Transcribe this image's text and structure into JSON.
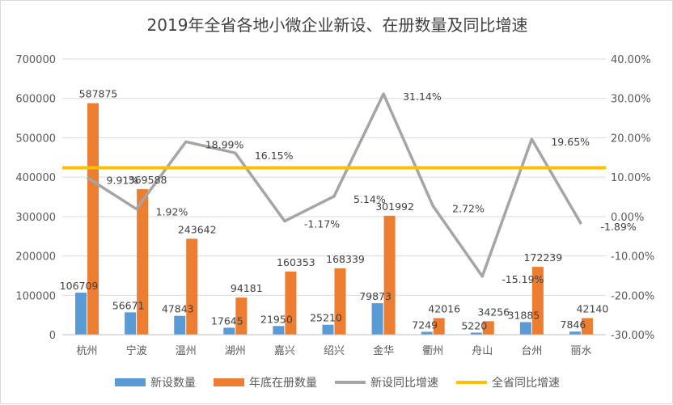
{
  "chart_data": {
    "type": "bar",
    "title": "2019年全省各地小微企业新设、在册数量及同比增速",
    "categories": [
      "杭州",
      "宁波",
      "温州",
      "湖州",
      "嘉兴",
      "绍兴",
      "金华",
      "衢州",
      "舟山",
      "台州",
      "丽水"
    ],
    "series": [
      {
        "name": "新设数量",
        "kind": "bar",
        "axis": "left",
        "color": "#5B9BD5",
        "values": [
          106709,
          56671,
          47843,
          17645,
          21950,
          25210,
          79873,
          7249,
          5220,
          31885,
          7846
        ],
        "labels": [
          "106709",
          "56671",
          "47843",
          "17645",
          "21950",
          "25210",
          "79873",
          "7249",
          "5220",
          "31885",
          "7846"
        ]
      },
      {
        "name": "年底在册数量",
        "kind": "bar",
        "axis": "left",
        "color": "#ED7D31",
        "values": [
          587875,
          369588,
          243642,
          94181,
          160353,
          168339,
          301992,
          42016,
          34256,
          172239,
          42140
        ],
        "labels": [
          "587875",
          "369588",
          "243642",
          "94181",
          "160353",
          "168339",
          "301992",
          "42016",
          "34256",
          "172239",
          "42140"
        ]
      },
      {
        "name": "新设同比增速",
        "kind": "line",
        "axis": "right",
        "color": "#A5A5A5",
        "values": [
          9.91,
          1.92,
          18.99,
          16.15,
          -1.17,
          5.14,
          31.14,
          2.72,
          -15.19,
          19.65,
          -1.89
        ],
        "labels": [
          "9.91%",
          "1.92%",
          "18.99%",
          "16.15%",
          "-1.17%",
          "5.14%",
          "31.14%",
          "2.72%",
          "-15.19%",
          "19.65%",
          "-1.89%"
        ]
      },
      {
        "name": "全省同比增速",
        "kind": "line",
        "axis": "right",
        "color": "#FFC000",
        "values": [
          12.4,
          12.4,
          12.4,
          12.4,
          12.4,
          12.4,
          12.4,
          12.4,
          12.4,
          12.4,
          12.4
        ]
      }
    ],
    "y_left": {
      "lim": [
        0,
        700000
      ],
      "ticks": [
        "0",
        "100000",
        "200000",
        "300000",
        "400000",
        "500000",
        "600000",
        "700000"
      ]
    },
    "y_right": {
      "lim": [
        -30,
        40
      ],
      "ticks": [
        "-30.00%",
        "-20.00%",
        "-10.00%",
        "0.00%",
        "10.00%",
        "20.00%",
        "30.00%",
        "40.00%"
      ]
    },
    "grid": true,
    "legend_position": "bottom"
  }
}
